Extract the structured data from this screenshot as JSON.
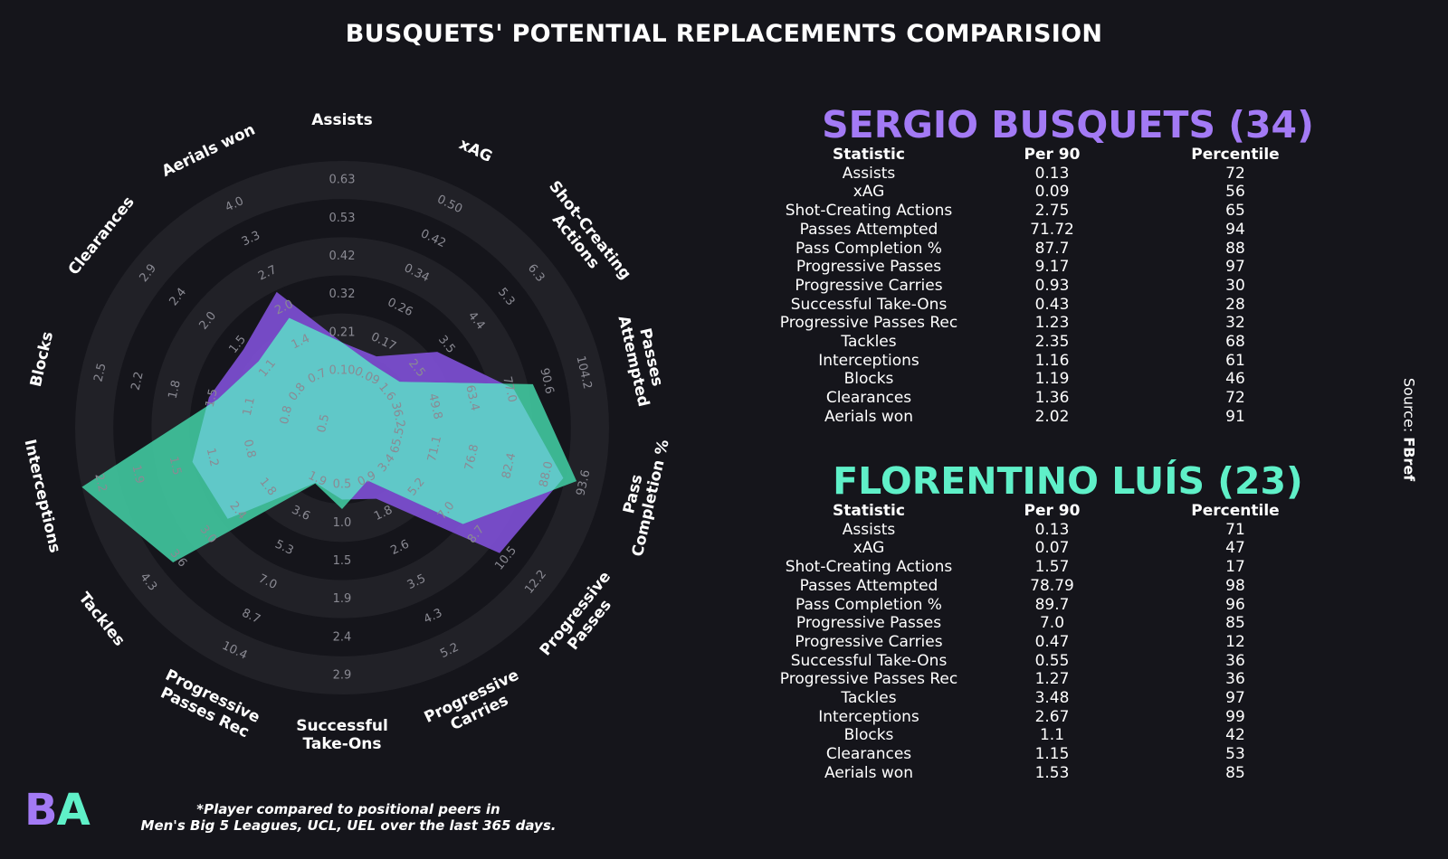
{
  "title": "BUSQUETS' POTENTIAL REPLACEMENTS COMPARISION",
  "colors": {
    "background": "#15151b",
    "ring_light": "#212127",
    "player1": "#a37af5",
    "player2": "#5ff0c8",
    "player1_fill": "#8050d8",
    "player2_fill": "#40c8a0",
    "overlap_fill": "#60c8c8"
  },
  "chart_data": {
    "type": "radar",
    "axes": [
      {
        "label": [
          "Assists"
        ],
        "ticks": [
          "0.10",
          "0.21",
          "0.32",
          "0.42",
          "0.53",
          "0.63"
        ],
        "range": [
          0.0,
          0.63
        ]
      },
      {
        "label": [
          "xAG"
        ],
        "ticks": [
          "0.09",
          "0.17",
          "0.26",
          "0.34",
          "0.42",
          "0.50"
        ],
        "range": [
          0.0,
          0.5
        ]
      },
      {
        "label": [
          "Shot-Creating",
          "Actions"
        ],
        "ticks": [
          "1.6",
          "2.5",
          "3.5",
          "4.4",
          "5.3",
          "6.3"
        ],
        "range": [
          0.7,
          6.3
        ]
      },
      {
        "label": [
          "Passes",
          "Attempted"
        ],
        "ticks": [
          "36.2",
          "49.8",
          "63.4",
          "77.0",
          "90.6",
          "104.2"
        ],
        "range": [
          22.6,
          104.2
        ]
      },
      {
        "label": [
          "Pass",
          "Completion %"
        ],
        "ticks": [
          "65.5",
          "71.1",
          "76.8",
          "82.4",
          "88.0",
          "93.6"
        ],
        "range": [
          59.9,
          93.6
        ]
      },
      {
        "label": [
          "Progressive",
          "Passes"
        ],
        "ticks": [
          "3.4",
          "5.2",
          "7.0",
          "8.7",
          "10.5",
          "12.2"
        ],
        "range": [
          1.6,
          12.2
        ]
      },
      {
        "label": [
          "Progressive",
          "Carries"
        ],
        "ticks": [
          "0.9",
          "1.8",
          "2.6",
          "3.5",
          "4.3",
          "5.2"
        ],
        "range": [
          0.0,
          5.2
        ]
      },
      {
        "label": [
          "Successful",
          "Take-Ons"
        ],
        "ticks": [
          "0.5",
          "1.0",
          "1.5",
          "1.9",
          "2.4",
          "2.9"
        ],
        "range": [
          0.0,
          2.9
        ]
      },
      {
        "label": [
          "Progressive",
          "Passes Rec"
        ],
        "ticks": [
          "1.9",
          "3.6",
          "5.3",
          "7.0",
          "8.7",
          "10.4"
        ],
        "range": [
          0.2,
          10.4
        ]
      },
      {
        "label": [
          "Tackles"
        ],
        "ticks": [
          "1.8",
          "2.4",
          "3.0",
          "3.6",
          "4.3"
        ],
        "range": [
          0.6,
          4.3
        ]
      },
      {
        "label": [
          "Interceptions"
        ],
        "ticks": [
          "0.8",
          "1.2",
          "1.5",
          "1.9",
          "2.2"
        ],
        "range": [
          0.1,
          2.2
        ]
      },
      {
        "label": [
          "Blocks"
        ],
        "ticks": [
          "0.5",
          "0.8",
          "1.1",
          "1.5",
          "1.8",
          "2.2",
          "2.5"
        ],
        "range": [
          0.2,
          2.5
        ]
      },
      {
        "label": [
          "Clearances"
        ],
        "ticks": [
          "0.8",
          "1.1",
          "1.5",
          "2.0",
          "2.4",
          "2.9"
        ],
        "range": [
          0.4,
          2.9
        ]
      },
      {
        "label": [
          "Aerials won"
        ],
        "ticks": [
          "0.7",
          "1.4",
          "2.0",
          "2.7",
          "3.3",
          "4.0"
        ],
        "range": [
          0.1,
          4.0
        ]
      }
    ],
    "series": [
      {
        "name": "SERGIO BUSQUETS (34)",
        "values": [
          0.13,
          0.09,
          2.75,
          71.72,
          87.7,
          9.17,
          0.93,
          0.43,
          1.23,
          2.35,
          1.16,
          1.19,
          1.36,
          2.02
        ]
      },
      {
        "name": "FLORENTINO LUÍS (23)",
        "values": [
          0.13,
          0.07,
          1.57,
          78.79,
          89.7,
          7.0,
          0.47,
          0.55,
          1.27,
          3.48,
          2.67,
          1.1,
          1.15,
          1.53
        ]
      }
    ]
  },
  "tables": {
    "headers": [
      "Statistic",
      "Per 90",
      "Percentile"
    ],
    "players": [
      {
        "name": "SERGIO BUSQUETS (34)",
        "rows": [
          [
            "Assists",
            "0.13",
            "72"
          ],
          [
            "xAG",
            "0.09",
            "56"
          ],
          [
            "Shot-Creating Actions",
            "2.75",
            "65"
          ],
          [
            "Passes Attempted",
            "71.72",
            "94"
          ],
          [
            "Pass Completion %",
            "87.7",
            "88"
          ],
          [
            "Progressive Passes",
            "9.17",
            "97"
          ],
          [
            "Progressive Carries",
            "0.93",
            "30"
          ],
          [
            "Successful Take-Ons",
            "0.43",
            "28"
          ],
          [
            "Progressive Passes Rec",
            "1.23",
            "32"
          ],
          [
            "Tackles",
            "2.35",
            "68"
          ],
          [
            "Interceptions",
            "1.16",
            "61"
          ],
          [
            "Blocks",
            "1.19",
            "46"
          ],
          [
            "Clearances",
            "1.36",
            "72"
          ],
          [
            "Aerials won",
            "2.02",
            "91"
          ]
        ]
      },
      {
        "name": "FLORENTINO LUÍS (23)",
        "rows": [
          [
            "Assists",
            "0.13",
            "71"
          ],
          [
            "xAG",
            "0.07",
            "47"
          ],
          [
            "Shot-Creating Actions",
            "1.57",
            "17"
          ],
          [
            "Passes Attempted",
            "78.79",
            "98"
          ],
          [
            "Pass Completion %",
            "89.7",
            "96"
          ],
          [
            "Progressive Passes",
            "7.0",
            "85"
          ],
          [
            "Progressive Carries",
            "0.47",
            "12"
          ],
          [
            "Successful Take-Ons",
            "0.55",
            "36"
          ],
          [
            "Progressive Passes Rec",
            "1.27",
            "36"
          ],
          [
            "Tackles",
            "3.48",
            "97"
          ],
          [
            "Interceptions",
            "2.67",
            "99"
          ],
          [
            "Blocks",
            "1.1",
            "42"
          ],
          [
            "Clearances",
            "1.15",
            "53"
          ],
          [
            "Aerials won",
            "1.53",
            "85"
          ]
        ]
      }
    ]
  },
  "source": {
    "prefix": "Source: ",
    "name": "FBref"
  },
  "logo": {
    "left": "B",
    "right": "A"
  },
  "footnote": {
    "line1": "*Player compared to positional peers in",
    "line2": "Men's Big 5 Leagues, UCL, UEL over the last 365 days."
  }
}
